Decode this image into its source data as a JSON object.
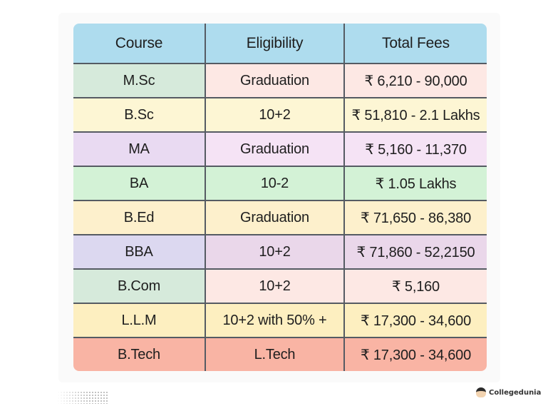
{
  "table": {
    "headers": [
      "Course",
      "Eligibility",
      "Total Fees"
    ],
    "header_color": "#aedcee",
    "rows": [
      {
        "course": "M.Sc",
        "eligibility": "Graduation",
        "fees": "₹ 6,210 - 90,000",
        "colors": [
          "#d6eadb",
          "#fde8e4",
          "#fde8e4"
        ]
      },
      {
        "course": "B.Sc",
        "eligibility": "10+2",
        "fees": "₹ 51,810 - 2.1 Lakhs",
        "colors": [
          "#fdf6d4",
          "#fdf6d4",
          "#fdf6d4"
        ]
      },
      {
        "course": "MA",
        "eligibility": "Graduation",
        "fees": "₹ 5,160 - 11,370",
        "colors": [
          "#e9daf2",
          "#f5e3f5",
          "#f5e3f5"
        ]
      },
      {
        "course": "BA",
        "eligibility": "10-2",
        "fees": "₹ 1.05 Lakhs",
        "colors": [
          "#d3f2d6",
          "#d3f2d6",
          "#d3f2d6"
        ]
      },
      {
        "course": "B.Ed",
        "eligibility": "Graduation",
        "fees": "₹ 71,650 - 86,380",
        "colors": [
          "#fdf0cc",
          "#fdf0cc",
          "#fdf0cc"
        ]
      },
      {
        "course": "BBA",
        "eligibility": "10+2",
        "fees": "₹ 71,860 - 52,2150",
        "colors": [
          "#dcd8f0",
          "#ead7ea",
          "#ead7ea"
        ]
      },
      {
        "course": "B.Com",
        "eligibility": "10+2",
        "fees": "₹ 5,160",
        "colors": [
          "#d6eadb",
          "#fde8e4",
          "#fde8e4"
        ]
      },
      {
        "course": "L.L.M",
        "eligibility": "10+2 with 50% +",
        "fees": "₹ 17,300 - 34,600",
        "colors": [
          "#fdefc0",
          "#fdefc0",
          "#fdefc0"
        ]
      },
      {
        "course": "B.Tech",
        "eligibility": "L.Tech",
        "fees": "₹ 17,300 - 34,600",
        "colors": [
          "#f9b4a4",
          "#f9b4a4",
          "#f9b4a4"
        ]
      }
    ]
  },
  "branding": {
    "name": "Collegedunia",
    "logo_icon": "student-avatar-icon"
  },
  "decoration": {
    "dot_pattern_icon": "halftone-dots"
  }
}
